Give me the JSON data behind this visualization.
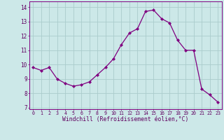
{
  "x": [
    0,
    1,
    2,
    3,
    4,
    5,
    6,
    7,
    8,
    9,
    10,
    11,
    12,
    13,
    14,
    15,
    16,
    17,
    18,
    19,
    20,
    21,
    22,
    23
  ],
  "y": [
    9.8,
    9.6,
    9.8,
    9.0,
    8.7,
    8.5,
    8.6,
    8.8,
    9.3,
    9.8,
    10.4,
    11.4,
    12.2,
    12.5,
    13.7,
    13.8,
    13.2,
    12.9,
    11.7,
    11.0,
    11.0,
    8.3,
    7.9,
    7.4
  ],
  "line_color": "#800080",
  "marker": "D",
  "marker_size": 2.0,
  "bg_color": "#cce8e8",
  "grid_color": "#aacccc",
  "xlabel": "Windchill (Refroidissement éolien,°C)",
  "ylabel_ticks": [
    7,
    8,
    9,
    10,
    11,
    12,
    13,
    14
  ],
  "xlim": [
    -0.5,
    23.5
  ],
  "ylim": [
    6.9,
    14.4
  ],
  "title": ""
}
